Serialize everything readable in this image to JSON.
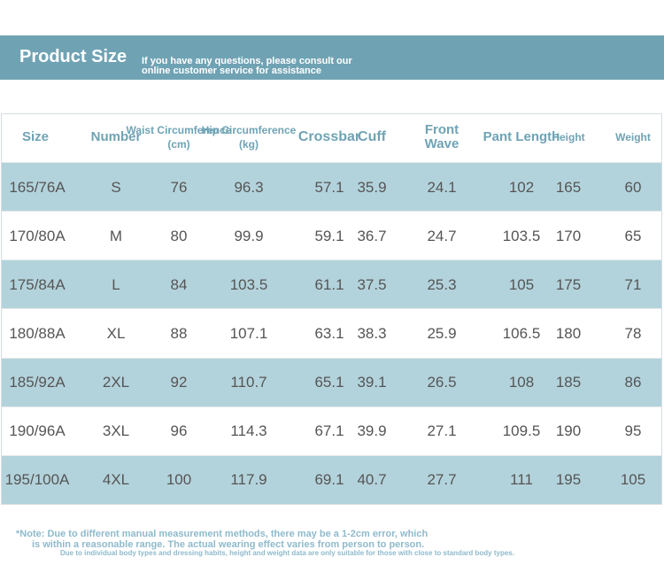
{
  "header": {
    "title": "Product Size",
    "subtitle": [
      "If you have any questions, please consult our",
      "online customer service for assistance"
    ]
  },
  "table": {
    "columns": [
      "Size",
      "Number",
      "Waist Circumference\n(cm)",
      "Hip Circumference\n(kg)",
      "Crossbar",
      "Cuff",
      "Front\nWave",
      "Pant Length",
      "Height",
      "Weight"
    ],
    "rows": [
      [
        "165/76A",
        "S",
        "76",
        "96.3",
        "57.1",
        "35.9",
        "24.1",
        "102",
        "165",
        "60"
      ],
      [
        "170/80A",
        "M",
        "80",
        "99.9",
        "59.1",
        "36.7",
        "24.7",
        "103.5",
        "170",
        "65"
      ],
      [
        "175/84A",
        "L",
        "84",
        "103.5",
        "61.1",
        "37.5",
        "25.3",
        "105",
        "175",
        "71"
      ],
      [
        "180/88A",
        "XL",
        "88",
        "107.1",
        "63.1",
        "38.3",
        "25.9",
        "106.5",
        "180",
        "78"
      ],
      [
        "185/92A",
        "2XL",
        "92",
        "110.7",
        "65.1",
        "39.1",
        "26.5",
        "108",
        "185",
        "86"
      ],
      [
        "190/96A",
        "3XL",
        "96",
        "114.3",
        "67.1",
        "39.9",
        "27.1",
        "109.5",
        "190",
        "95"
      ],
      [
        "195/100A",
        "4XL",
        "100",
        "117.9",
        "69.1",
        "40.7",
        "27.7",
        "111",
        "195",
        "105"
      ]
    ]
  },
  "notes": [
    "*Note: Due to different manual measurement methods, there may be a 1-2cm error, which",
    "is within a reasonable range. The actual wearing effect varies from person to person.",
    "Due to individual body types and dressing habits, height and weight data are only suitable for those with close to standard body types."
  ]
}
